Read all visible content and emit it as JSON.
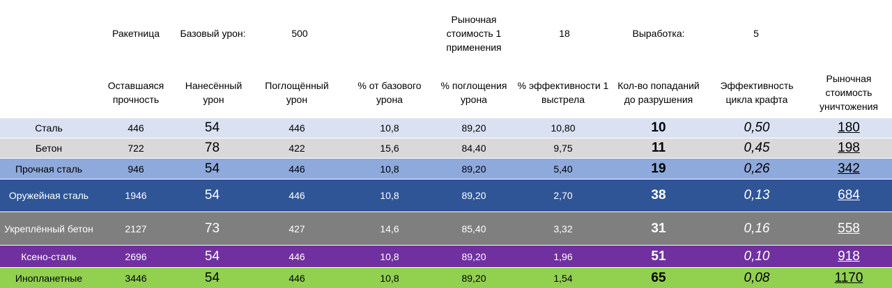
{
  "top": {
    "weapon": "Ракетница",
    "base_damage_label": "Базовый урон:",
    "base_damage_value": "500",
    "market_cost_label": "Рыночная стоимость 1 применения",
    "market_cost_value": "18",
    "yield_label": "Выработка:",
    "yield_value": "5"
  },
  "headers": [
    "Оставшаяся прочность",
    "Нанесённый урон",
    "Поглощённый урон",
    "% от базового урона",
    "% поглощения урона",
    "% эффективности 1 выстрела",
    "Кол-во попаданий до разрушения",
    "Эффективность цикла крафта",
    "Рыночная стоимость уничтожения"
  ],
  "rows": [
    {
      "name": "Сталь",
      "bg": "#d9e1f2",
      "text_color": "#000000",
      "durability": "446",
      "dealt": "54",
      "absorbed": "446",
      "pct_base": "10,8",
      "pct_absorb": "89,20",
      "pct_eff": "10,80",
      "hits": "10",
      "craft_eff": "0,50",
      "cost": "180"
    },
    {
      "name": "Бетон",
      "bg": "#d9d9d9",
      "text_color": "#000000",
      "durability": "722",
      "dealt": "78",
      "absorbed": "422",
      "pct_base": "15,6",
      "pct_absorb": "84,40",
      "pct_eff": "9,75",
      "hits": "11",
      "craft_eff": "0,45",
      "cost": "198"
    },
    {
      "name": "Прочная сталь",
      "bg": "#8ea9db",
      "text_color": "#000000",
      "durability": "946",
      "dealt": "54",
      "absorbed": "446",
      "pct_base": "10,8",
      "pct_absorb": "89,20",
      "pct_eff": "5,40",
      "hits": "19",
      "craft_eff": "0,26",
      "cost": "342"
    },
    {
      "name": "Оружейная сталь",
      "bg": "#2f5597",
      "text_color": "#ffffff",
      "durability": "1946",
      "dealt": "54",
      "absorbed": "446",
      "pct_base": "10,8",
      "pct_absorb": "89,20",
      "pct_eff": "2,70",
      "hits": "38",
      "craft_eff": "0,13",
      "cost": "684"
    },
    {
      "name": "Укреплённый бетон",
      "bg": "#7f7f7f",
      "text_color": "#ffffff",
      "durability": "2127",
      "dealt": "73",
      "absorbed": "427",
      "pct_base": "14,6",
      "pct_absorb": "85,40",
      "pct_eff": "3,32",
      "hits": "31",
      "craft_eff": "0,16",
      "cost": "558"
    },
    {
      "name": "Ксено-сталь",
      "bg": "#7030a0",
      "text_color": "#ffffff",
      "durability": "2696",
      "dealt": "54",
      "absorbed": "446",
      "pct_base": "10,8",
      "pct_absorb": "89,20",
      "pct_eff": "1,96",
      "hits": "51",
      "craft_eff": "0,10",
      "cost": "918"
    },
    {
      "name": "Инопланетные",
      "bg": "#92d050",
      "text_color": "#000000",
      "durability": "3446",
      "dealt": "54",
      "absorbed": "446",
      "pct_base": "10,8",
      "pct_absorb": "89,20",
      "pct_eff": "1,54",
      "hits": "65",
      "craft_eff": "0,08",
      "cost": "1170"
    }
  ]
}
